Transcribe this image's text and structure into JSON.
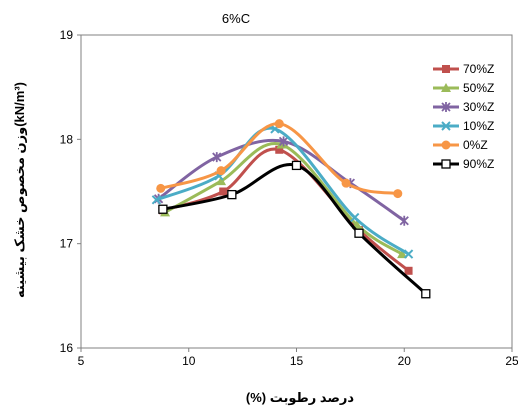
{
  "chart_data": {
    "type": "line",
    "title": "6%C",
    "xlabel": "درصد رطوبت (%)",
    "ylabel": "وزن مخصوص خشک بیشینه(kN/m³)",
    "xlim": [
      5,
      25
    ],
    "ylim": [
      16,
      19
    ],
    "x_ticks": [
      "5",
      "10",
      "15",
      "20",
      "25"
    ],
    "y_ticks": [
      "16",
      "17",
      "18",
      "19"
    ],
    "grid": false,
    "legend_position": "right",
    "series": [
      {
        "name": "70%Z",
        "color": "#c0504d",
        "marker": "square",
        "x": [
          8.8,
          11.6,
          14.2,
          17.9,
          20.2
        ],
        "y": [
          17.32,
          17.5,
          17.9,
          17.13,
          16.74
        ]
      },
      {
        "name": "50%Z",
        "color": "#9bbb59",
        "marker": "triangle",
        "x": [
          8.9,
          11.5,
          14.3,
          17.8,
          19.9
        ],
        "y": [
          17.3,
          17.6,
          17.95,
          17.18,
          16.9
        ]
      },
      {
        "name": "30%Z",
        "color": "#8064a2",
        "marker": "star",
        "x": [
          8.6,
          11.3,
          14.4,
          17.5,
          20.0
        ],
        "y": [
          17.43,
          17.83,
          17.98,
          17.58,
          17.22
        ]
      },
      {
        "name": "10%Z",
        "color": "#4bacc6",
        "marker": "x",
        "x": [
          8.5,
          11.4,
          14.0,
          17.7,
          20.2
        ],
        "y": [
          17.42,
          17.65,
          18.1,
          17.25,
          16.9
        ]
      },
      {
        "name": "0%Z",
        "color": "#f79646",
        "marker": "circle",
        "x": [
          8.7,
          11.5,
          14.2,
          17.3,
          19.7
        ],
        "y": [
          17.53,
          17.7,
          18.15,
          17.58,
          17.48
        ]
      },
      {
        "name": "90%Z",
        "color": "#000000",
        "marker": "open-square",
        "x": [
          8.8,
          12.0,
          15.0,
          17.9,
          21.0
        ],
        "y": [
          17.33,
          17.47,
          17.75,
          17.1,
          16.52
        ]
      }
    ]
  }
}
